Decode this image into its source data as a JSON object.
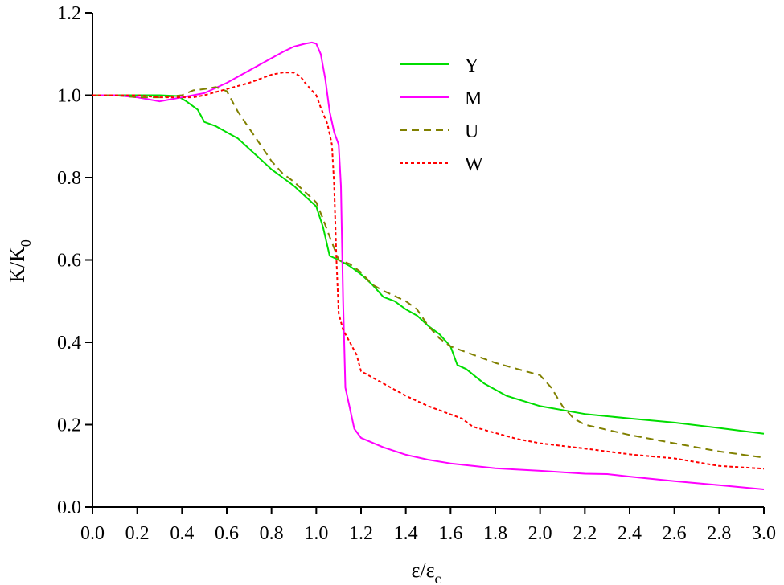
{
  "chart_data": {
    "type": "line",
    "xlabel": "ε/ε",
    "xlabel_sub": "c",
    "ylabel": "K/K",
    "ylabel_sub": "0",
    "xlim": [
      0.0,
      3.0
    ],
    "ylim": [
      0.0,
      1.2
    ],
    "x_ticks": [
      "0.0",
      "0.2",
      "0.4",
      "0.6",
      "0.8",
      "1.0",
      "1.2",
      "1.4",
      "1.6",
      "1.8",
      "2.0",
      "2.2",
      "2.4",
      "2.6",
      "2.8",
      "3.0"
    ],
    "y_ticks": [
      "0.0",
      "0.2",
      "0.4",
      "0.6",
      "0.8",
      "1.0",
      "1.2"
    ],
    "grid": false,
    "legend_position": "top-right",
    "series": [
      {
        "name": "Y",
        "color": "#00dd00",
        "dash": "solid",
        "points": [
          [
            0.0,
            1.0
          ],
          [
            0.1,
            1.0
          ],
          [
            0.2,
            1.0
          ],
          [
            0.3,
            1.0
          ],
          [
            0.38,
            0.998
          ],
          [
            0.42,
            0.985
          ],
          [
            0.47,
            0.965
          ],
          [
            0.5,
            0.935
          ],
          [
            0.55,
            0.925
          ],
          [
            0.6,
            0.91
          ],
          [
            0.65,
            0.895
          ],
          [
            0.7,
            0.87
          ],
          [
            0.75,
            0.845
          ],
          [
            0.8,
            0.82
          ],
          [
            0.85,
            0.8
          ],
          [
            0.9,
            0.78
          ],
          [
            0.95,
            0.755
          ],
          [
            1.0,
            0.73
          ],
          [
            1.03,
            0.68
          ],
          [
            1.06,
            0.61
          ],
          [
            1.1,
            0.6
          ],
          [
            1.15,
            0.585
          ],
          [
            1.2,
            0.565
          ],
          [
            1.25,
            0.54
          ],
          [
            1.3,
            0.51
          ],
          [
            1.35,
            0.5
          ],
          [
            1.4,
            0.48
          ],
          [
            1.45,
            0.465
          ],
          [
            1.5,
            0.44
          ],
          [
            1.55,
            0.42
          ],
          [
            1.6,
            0.39
          ],
          [
            1.63,
            0.345
          ],
          [
            1.67,
            0.335
          ],
          [
            1.75,
            0.3
          ],
          [
            1.85,
            0.27
          ],
          [
            2.0,
            0.245
          ],
          [
            2.2,
            0.226
          ],
          [
            2.4,
            0.215
          ],
          [
            2.6,
            0.205
          ],
          [
            2.8,
            0.192
          ],
          [
            3.0,
            0.178
          ]
        ]
      },
      {
        "name": "M",
        "color": "#ff00ff",
        "dash": "solid",
        "points": [
          [
            0.0,
            1.0
          ],
          [
            0.1,
            1.0
          ],
          [
            0.2,
            0.995
          ],
          [
            0.25,
            0.99
          ],
          [
            0.3,
            0.985
          ],
          [
            0.35,
            0.99
          ],
          [
            0.4,
            0.995
          ],
          [
            0.5,
            1.005
          ],
          [
            0.6,
            1.03
          ],
          [
            0.7,
            1.06
          ],
          [
            0.8,
            1.09
          ],
          [
            0.85,
            1.105
          ],
          [
            0.9,
            1.118
          ],
          [
            0.95,
            1.125
          ],
          [
            0.98,
            1.128
          ],
          [
            1.0,
            1.125
          ],
          [
            1.02,
            1.1
          ],
          [
            1.04,
            1.04
          ],
          [
            1.06,
            0.96
          ],
          [
            1.08,
            0.91
          ],
          [
            1.1,
            0.88
          ],
          [
            1.11,
            0.78
          ],
          [
            1.12,
            0.5
          ],
          [
            1.13,
            0.29
          ],
          [
            1.15,
            0.24
          ],
          [
            1.17,
            0.19
          ],
          [
            1.2,
            0.168
          ],
          [
            1.3,
            0.145
          ],
          [
            1.4,
            0.127
          ],
          [
            1.5,
            0.115
          ],
          [
            1.6,
            0.106
          ],
          [
            1.8,
            0.094
          ],
          [
            2.0,
            0.088
          ],
          [
            2.2,
            0.081
          ],
          [
            2.3,
            0.08
          ],
          [
            2.4,
            0.074
          ],
          [
            2.6,
            0.063
          ],
          [
            2.8,
            0.053
          ],
          [
            3.0,
            0.043
          ]
        ]
      },
      {
        "name": "U",
        "color": "#808000",
        "dash": "dashed",
        "points": [
          [
            0.0,
            1.0
          ],
          [
            0.1,
            1.0
          ],
          [
            0.2,
            0.995
          ],
          [
            0.3,
            0.995
          ],
          [
            0.4,
            1.0
          ],
          [
            0.45,
            1.012
          ],
          [
            0.5,
            1.015
          ],
          [
            0.55,
            1.02
          ],
          [
            0.6,
            1.01
          ],
          [
            0.65,
            0.96
          ],
          [
            0.7,
            0.92
          ],
          [
            0.75,
            0.88
          ],
          [
            0.8,
            0.84
          ],
          [
            0.85,
            0.81
          ],
          [
            0.9,
            0.79
          ],
          [
            0.95,
            0.765
          ],
          [
            1.0,
            0.74
          ],
          [
            1.03,
            0.7
          ],
          [
            1.05,
            0.67
          ],
          [
            1.1,
            0.6
          ],
          [
            1.15,
            0.59
          ],
          [
            1.2,
            0.57
          ],
          [
            1.25,
            0.54
          ],
          [
            1.3,
            0.525
          ],
          [
            1.4,
            0.5
          ],
          [
            1.45,
            0.48
          ],
          [
            1.5,
            0.44
          ],
          [
            1.55,
            0.41
          ],
          [
            1.6,
            0.39
          ],
          [
            1.7,
            0.37
          ],
          [
            1.8,
            0.35
          ],
          [
            1.9,
            0.335
          ],
          [
            2.0,
            0.32
          ],
          [
            2.05,
            0.29
          ],
          [
            2.1,
            0.245
          ],
          [
            2.15,
            0.215
          ],
          [
            2.2,
            0.2
          ],
          [
            2.4,
            0.175
          ],
          [
            2.6,
            0.155
          ],
          [
            2.8,
            0.135
          ],
          [
            3.0,
            0.12
          ]
        ]
      },
      {
        "name": "W",
        "color": "#ff0000",
        "dash": "dotted",
        "points": [
          [
            0.0,
            1.0
          ],
          [
            0.1,
            1.0
          ],
          [
            0.2,
            1.0
          ],
          [
            0.3,
            0.995
          ],
          [
            0.4,
            0.995
          ],
          [
            0.45,
            0.995
          ],
          [
            0.5,
            1.0
          ],
          [
            0.6,
            1.015
          ],
          [
            0.7,
            1.03
          ],
          [
            0.8,
            1.05
          ],
          [
            0.85,
            1.055
          ],
          [
            0.9,
            1.055
          ],
          [
            0.93,
            1.045
          ],
          [
            0.95,
            1.03
          ],
          [
            1.0,
            1.0
          ],
          [
            1.02,
            0.97
          ],
          [
            1.05,
            0.93
          ],
          [
            1.07,
            0.88
          ],
          [
            1.08,
            0.78
          ],
          [
            1.09,
            0.6
          ],
          [
            1.1,
            0.47
          ],
          [
            1.12,
            0.43
          ],
          [
            1.15,
            0.4
          ],
          [
            1.18,
            0.37
          ],
          [
            1.2,
            0.33
          ],
          [
            1.3,
            0.3
          ],
          [
            1.4,
            0.27
          ],
          [
            1.5,
            0.245
          ],
          [
            1.6,
            0.225
          ],
          [
            1.65,
            0.215
          ],
          [
            1.7,
            0.195
          ],
          [
            1.8,
            0.18
          ],
          [
            1.9,
            0.165
          ],
          [
            2.0,
            0.155
          ],
          [
            2.2,
            0.142
          ],
          [
            2.4,
            0.128
          ],
          [
            2.6,
            0.118
          ],
          [
            2.8,
            0.1
          ],
          [
            3.0,
            0.093
          ]
        ]
      }
    ]
  }
}
